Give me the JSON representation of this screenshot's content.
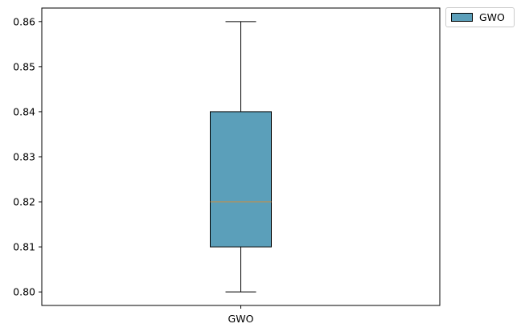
{
  "chart_data": {
    "type": "box",
    "categories": [
      "GWO"
    ],
    "series": [
      {
        "name": "GWO",
        "whisker_low": 0.8,
        "q1": 0.81,
        "median": 0.82,
        "q3": 0.84,
        "whisker_high": 0.86
      }
    ],
    "title": "",
    "xlabel": "",
    "ylabel": "",
    "ylim": [
      0.797,
      0.863
    ],
    "yticks": [
      0.8,
      0.81,
      0.82,
      0.83,
      0.84,
      0.85,
      0.86
    ],
    "ytick_labels": [
      "0.80",
      "0.81",
      "0.82",
      "0.83",
      "0.84",
      "0.85",
      "0.86"
    ],
    "grid": false,
    "legend": {
      "placement": "outside-top-right",
      "entries": [
        "GWO"
      ]
    },
    "colors": {
      "box_fill": "#5b9fba",
      "median": "#d08c3c",
      "edge": "#000000"
    }
  }
}
